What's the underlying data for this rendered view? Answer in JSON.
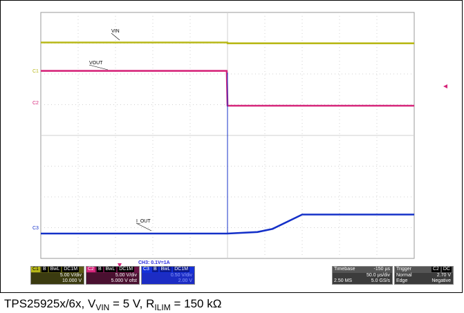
{
  "chart_data": {
    "type": "line",
    "title": "",
    "xlabel": "",
    "ylabel": "",
    "x_unit": "µs",
    "xlim": [
      -250,
      250
    ],
    "series": [
      {
        "name": "VIN",
        "channel": "C1",
        "color": "#b8b817",
        "volts_per_div": 5.0,
        "offset": "10.000 V",
        "x": [
          -250,
          0,
          0,
          250
        ],
        "y": [
          12.0,
          12.0,
          11.7,
          11.7
        ]
      },
      {
        "name": "VOUT",
        "channel": "C2",
        "color": "#d6257a",
        "volts_per_div": 5.0,
        "offset": "5.000 V ofst",
        "x": [
          -250,
          -1,
          0,
          250
        ],
        "y": [
          12.0,
          12.0,
          0.0,
          0.0
        ]
      },
      {
        "name": "I_OUT",
        "channel": "C3",
        "color": "#1430c8",
        "unit": "A",
        "scale": "CH3: 0.1V=1A",
        "x": [
          -250,
          0,
          40,
          60,
          100,
          250
        ],
        "y": [
          0.0,
          0.0,
          0.1,
          0.3,
          1.25,
          1.25
        ]
      }
    ]
  },
  "trace_labels": {
    "c1": "C1",
    "c2": "C2",
    "c3": "C3"
  },
  "scale_note": "CH3: 0.1V=1A",
  "ch1_box": {
    "title": "C1",
    "chips": [
      "B",
      "BwL",
      "DC1M"
    ],
    "line1": "5.00 V/div",
    "line2": "10.000 V",
    "color": "#b8b817"
  },
  "ch2_box": {
    "title": "C2",
    "chips": [
      "B",
      "BwL",
      "DC1M"
    ],
    "line1": "5.00 V/div",
    "line2": "5.000 V ofst",
    "color": "#d6257a"
  },
  "ch3_box": {
    "title": "C3",
    "chips": [
      "B",
      "BwL",
      "DC1M"
    ],
    "line1": "0.50 V/div",
    "line2": "2.00 V",
    "color": "#1430c8"
  },
  "timebase_box": {
    "title": "Timebase",
    "value": "-150 µs",
    "line1": "50.0 µs/div",
    "line2_left": "2.50 MS",
    "line2_right": "5.0 GS/s"
  },
  "trigger_box": {
    "title": "Trigger",
    "chips": [
      "C2",
      "DC"
    ],
    "line1_left": "Normal",
    "line1_right": "2.70 V",
    "line2_left": "Edge",
    "line2_right": "Negative"
  },
  "caption": {
    "prefix": "TPS25925x/6x, V",
    "sub1": "VIN",
    "mid": " = 5 V, R",
    "sub2": "ILIM",
    "suffix": " = 150 kΩ"
  }
}
